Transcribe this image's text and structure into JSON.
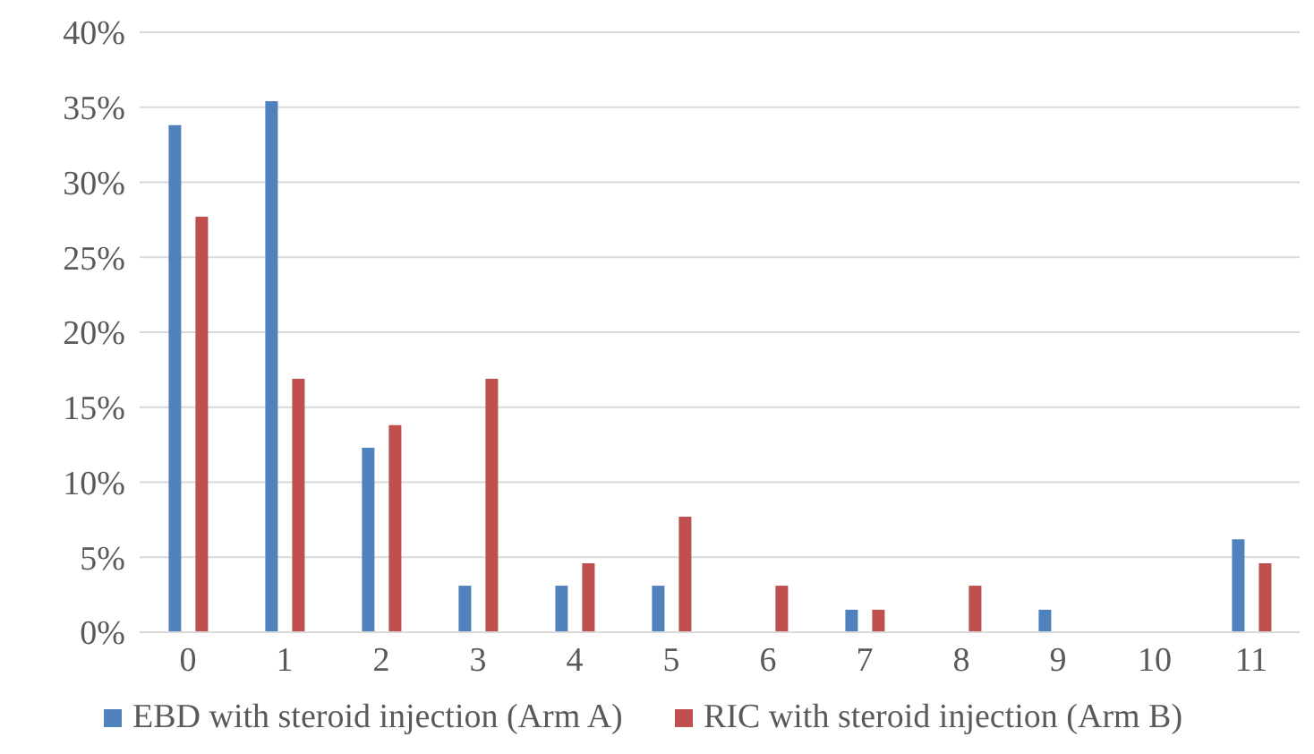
{
  "chart_data": {
    "type": "bar",
    "categories": [
      "0",
      "1",
      "2",
      "3",
      "4",
      "5",
      "6",
      "7",
      "8",
      "9",
      "10",
      "11"
    ],
    "series": [
      {
        "name": "EBD with steroid injection (Arm A)",
        "color": "#4f81bd",
        "values": [
          33.8,
          35.4,
          12.3,
          3.1,
          3.1,
          3.1,
          0,
          1.5,
          0,
          1.5,
          0,
          6.2
        ]
      },
      {
        "name": "RIC with steroid injection (Arm B)",
        "color": "#c0504d",
        "values": [
          27.7,
          16.9,
          13.8,
          16.9,
          4.6,
          7.7,
          3.1,
          1.5,
          3.1,
          0,
          0,
          4.6
        ]
      }
    ],
    "ylim": [
      0,
      40
    ],
    "yticks": [
      {
        "value": 0,
        "label": "0%"
      },
      {
        "value": 5,
        "label": "5%"
      },
      {
        "value": 10,
        "label": "10%"
      },
      {
        "value": 15,
        "label": "15%"
      },
      {
        "value": 20,
        "label": "20%"
      },
      {
        "value": 25,
        "label": "25%"
      },
      {
        "value": 30,
        "label": "30%"
      },
      {
        "value": 35,
        "label": "35%"
      },
      {
        "value": 40,
        "label": "40%"
      }
    ],
    "grid": "y",
    "legend": "bottom"
  }
}
